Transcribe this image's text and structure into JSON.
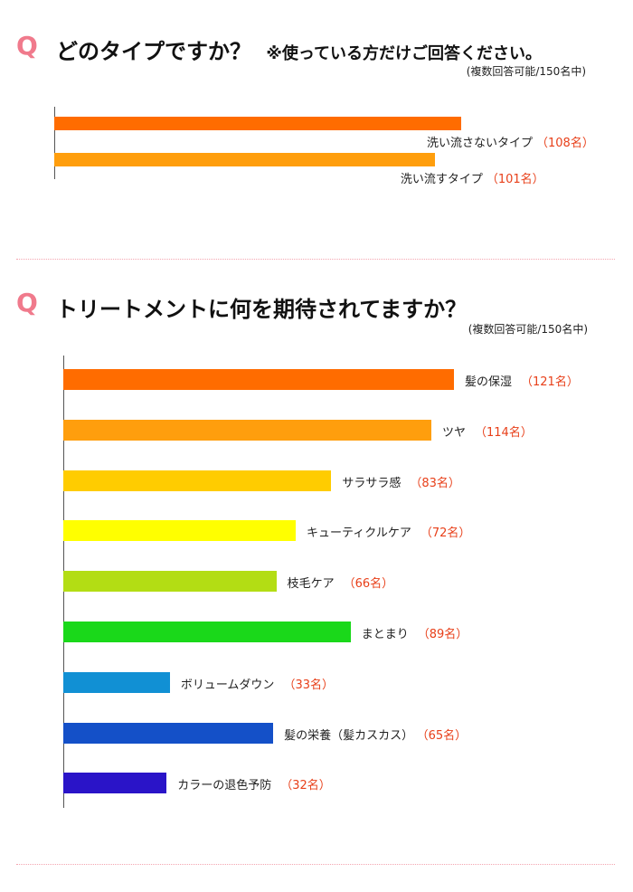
{
  "q1": {
    "mark": "Q",
    "title": "どのタイプですか？",
    "note": "※使っている方だけご回答ください。",
    "subtitle": "(複数回答可能/150名中)"
  },
  "q2": {
    "mark": "Q",
    "title": "トリートメントに何を期待されてますか？",
    "subtitle": "(複数回答可能/150名中)"
  },
  "chart_data": [
    {
      "type": "bar",
      "orientation": "horizontal",
      "title": "どのタイプですか？",
      "xlim": [
        0,
        150
      ],
      "categories": [
        "洗い流さないタイプ",
        "洗い流すタイプ"
      ],
      "values": [
        108,
        101
      ],
      "counts": [
        "（108名）",
        "（101名）"
      ],
      "colors": [
        "#ff6c00",
        "#ff9e0d"
      ]
    },
    {
      "type": "bar",
      "orientation": "horizontal",
      "title": "トリートメントに何を期待されてますか？",
      "xlim": [
        0,
        150
      ],
      "categories": [
        "髪の保湿",
        "ツヤ",
        "サラサラ感",
        "キューティクルケア",
        "枝毛ケア",
        "まとまり",
        "ボリュームダウン",
        "髪の栄養（髪カスカス）",
        "カラーの退色予防"
      ],
      "values": [
        121,
        114,
        83,
        72,
        66,
        89,
        33,
        65,
        32
      ],
      "counts": [
        "（121名）",
        "（114名）",
        "（83名）",
        "（72名）",
        "（66名）",
        "（89名）",
        "（33名）",
        "（65名）",
        "（32名）"
      ],
      "colors": [
        "#ff6c00",
        "#ff9e0d",
        "#ffcc00",
        "#ffff00",
        "#b3dd14",
        "#1ad81a",
        "#1190d4",
        "#1450c8",
        "#2a14c8"
      ]
    }
  ]
}
